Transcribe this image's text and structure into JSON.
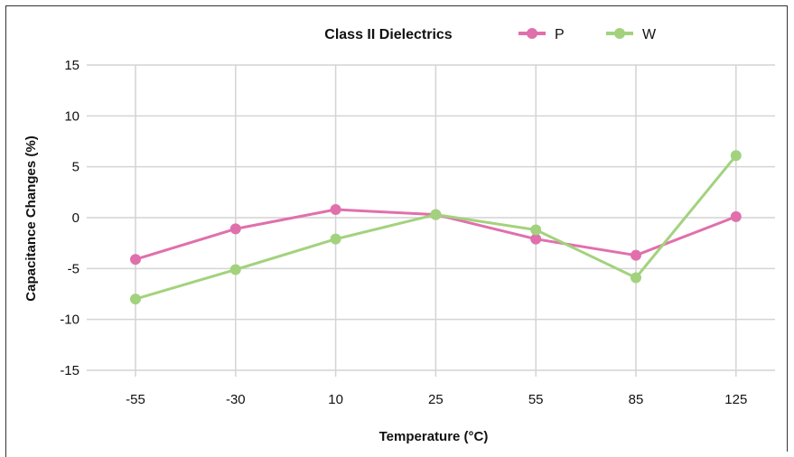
{
  "chart_data": {
    "type": "line",
    "title": "Class II Dielectrics",
    "xlabel": "Temperature (°C)",
    "ylabel": "Capacitance Changes (%)",
    "categories": [
      "-55",
      "-30",
      "10",
      "25",
      "55",
      "85",
      "125"
    ],
    "ylim": [
      -15,
      15
    ],
    "yticks": [
      "15",
      "10",
      "5",
      "0",
      "-5",
      "-10",
      "-15"
    ],
    "grid": true,
    "legend_position": "top-right",
    "series": [
      {
        "name": "P",
        "color": "#e070ac",
        "values": [
          -4.1,
          -1.1,
          0.8,
          0.3,
          -2.1,
          -3.7,
          0.1
        ]
      },
      {
        "name": "W",
        "color": "#a3d27e",
        "values": [
          -8.0,
          -5.1,
          -2.1,
          0.3,
          -1.2,
          -5.9,
          6.1
        ]
      }
    ]
  }
}
